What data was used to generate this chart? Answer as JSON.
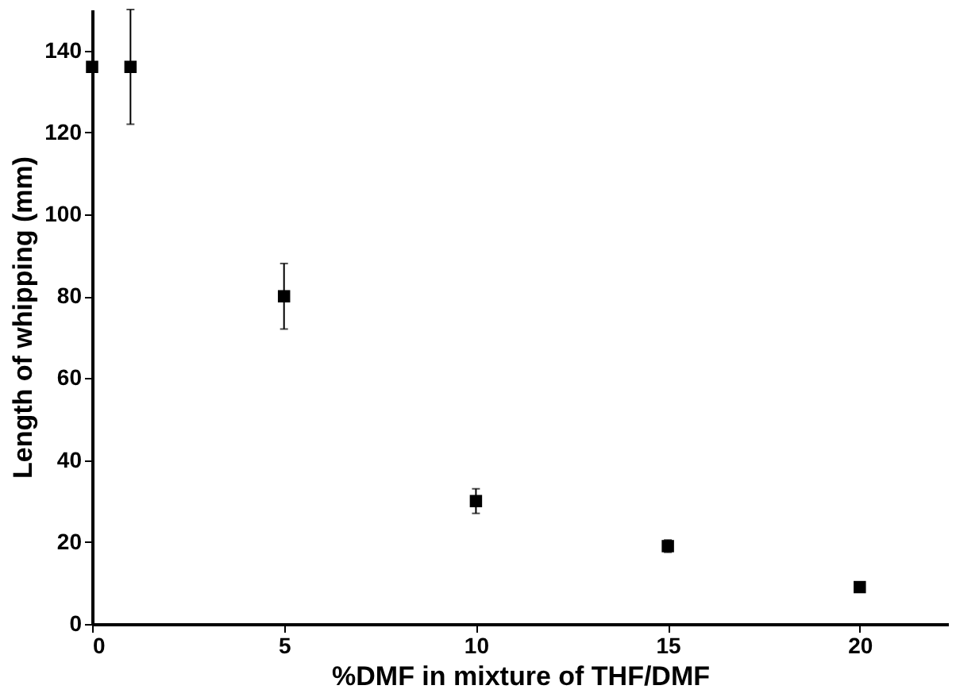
{
  "chart_data": {
    "type": "scatter",
    "xlabel": "%DMF in mixture of THF/DMF",
    "ylabel": "Length of whipping (mm)",
    "x": [
      0,
      1,
      5,
      10,
      15,
      20
    ],
    "values": [
      136,
      136,
      80,
      30,
      19,
      9
    ],
    "errors": [
      null,
      14,
      8,
      3,
      1.5,
      null
    ],
    "color": "#000000",
    "marker": "square",
    "xlim": [
      0,
      22.3
    ],
    "xticks": [
      0,
      5,
      10,
      15,
      20
    ],
    "ylim": [
      0,
      150
    ],
    "yticks": [
      0,
      20,
      40,
      60,
      80,
      100,
      120,
      140
    ],
    "grid": false
  }
}
